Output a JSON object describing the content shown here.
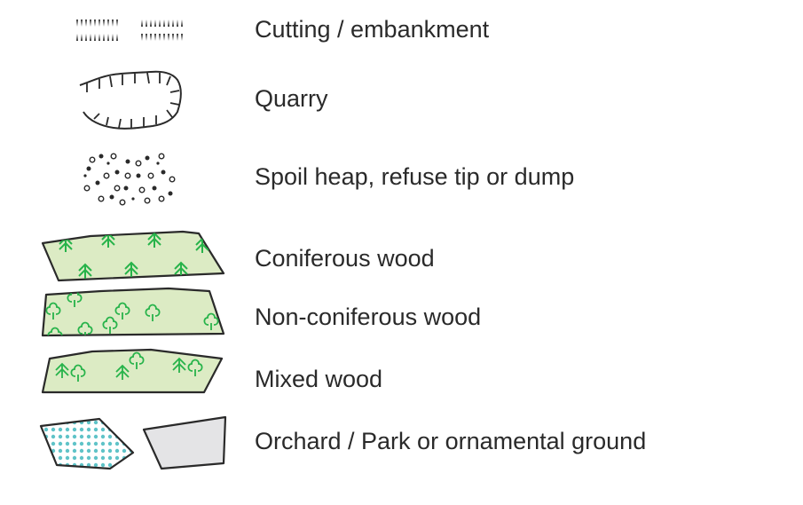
{
  "legend": {
    "items": [
      {
        "label": "Cutting / embankment",
        "symbol": "cutting-embankment-symbol"
      },
      {
        "label": "Quarry",
        "symbol": "quarry-symbol"
      },
      {
        "label": "Spoil heap, refuse tip or dump",
        "symbol": "spoil-heap-symbol"
      },
      {
        "label": "Coniferous wood",
        "symbol": "coniferous-wood-symbol"
      },
      {
        "label": "Non-coniferous wood",
        "symbol": "non-coniferous-wood-symbol"
      },
      {
        "label": "Mixed wood",
        "symbol": "mixed-wood-symbol"
      },
      {
        "label": "Orchard / Park or ornamental ground",
        "symbol": "orchard-park-symbol"
      }
    ]
  },
  "colors": {
    "wood_fill": "#dcebc4",
    "tree_green": "#27b34a",
    "orchard_dot": "#5fc3c8",
    "park_fill": "#e4e4e6",
    "outline": "#2a2a2a",
    "label_text": "#2a2a2a"
  }
}
